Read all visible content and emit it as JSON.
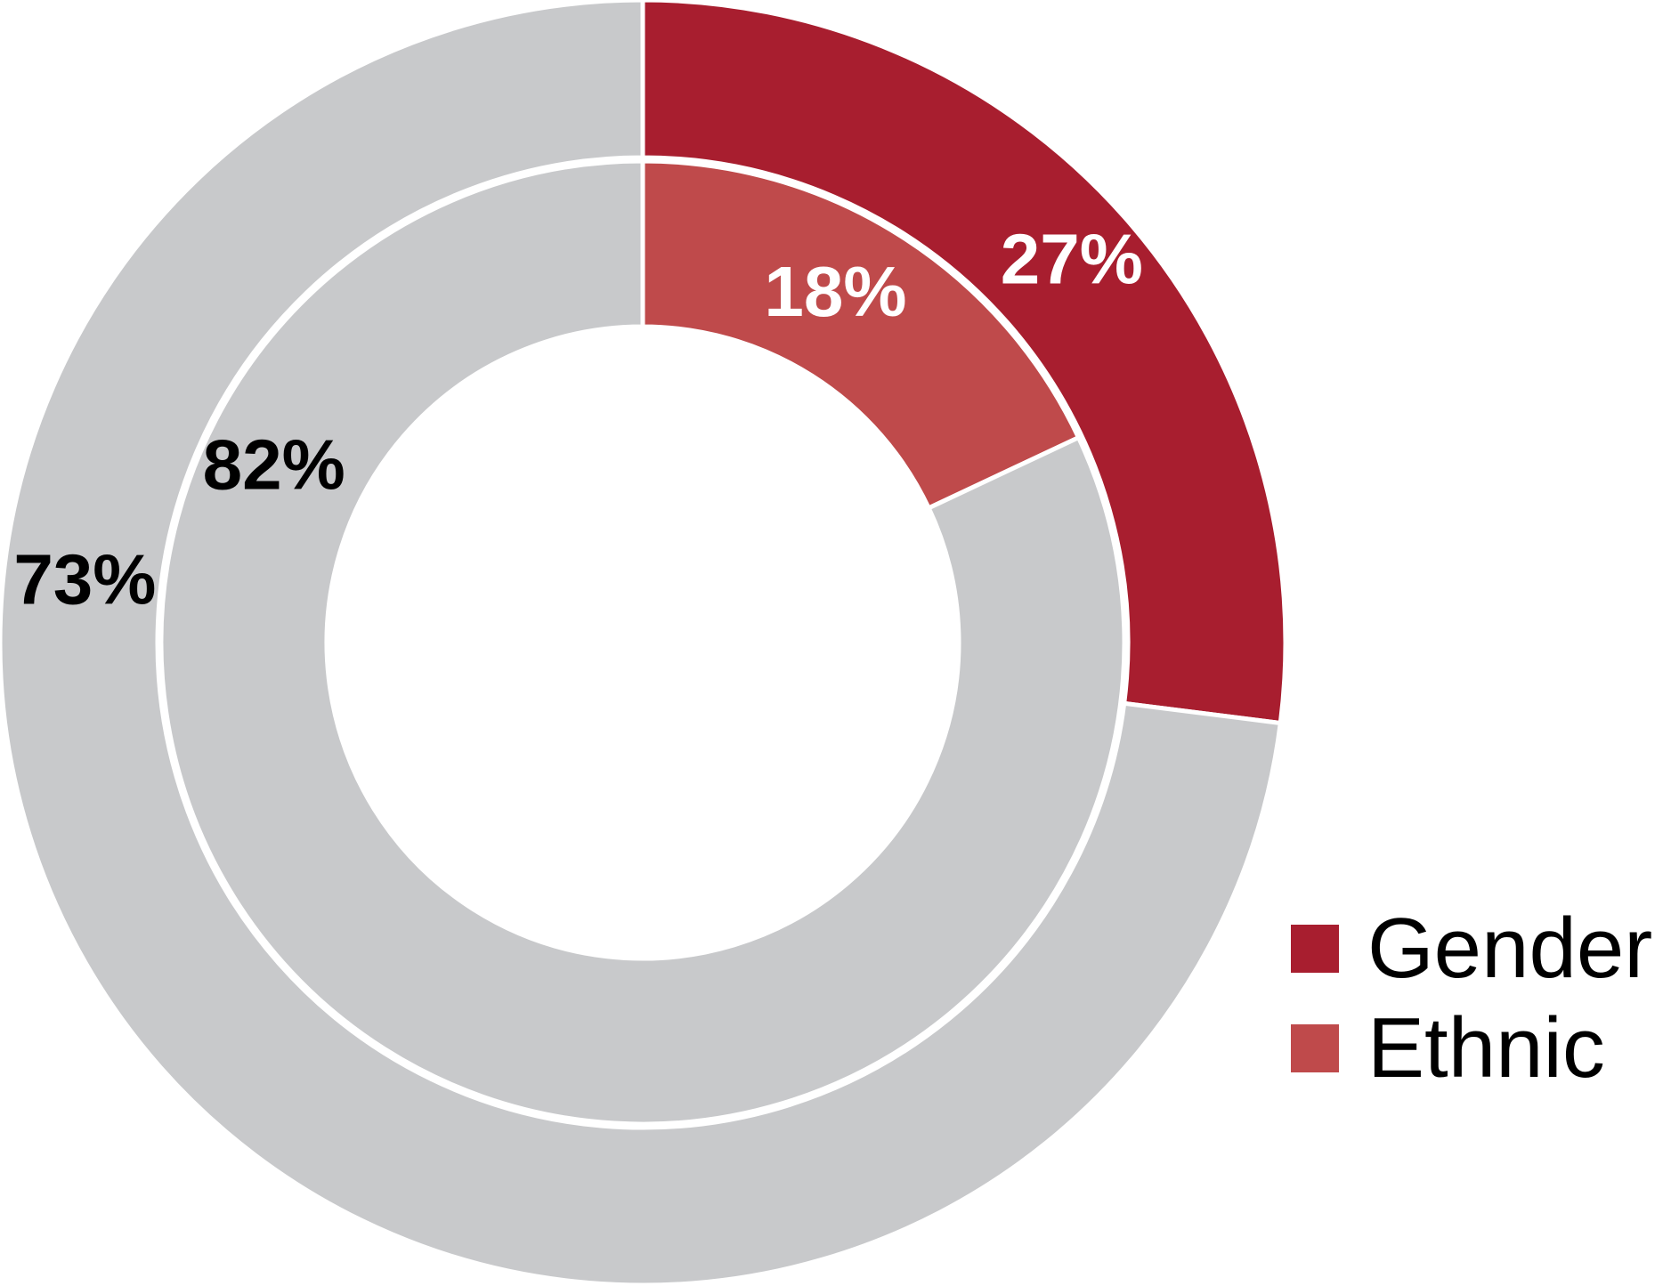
{
  "chart_data": {
    "type": "pie",
    "series": [
      {
        "name": "Gender",
        "ring": "outer",
        "values": [
          27,
          73
        ],
        "labels": [
          "27%",
          "73%"
        ],
        "colors": [
          "#a81e2f",
          "#c8c9cb"
        ]
      },
      {
        "name": "Ethnic",
        "ring": "inner",
        "values": [
          18,
          82
        ],
        "labels": [
          "18%",
          "82%"
        ],
        "colors": [
          "#bf4a4b",
          "#c8c9cb"
        ]
      }
    ],
    "legend": {
      "position": "bottom-right",
      "entries": [
        {
          "label": "Gender",
          "color": "#a81e2f"
        },
        {
          "label": "Ethnic",
          "color": "#bf4a4b"
        }
      ]
    },
    "label_colors": {
      "highlight": "#ffffff",
      "remainder": "#000000"
    }
  }
}
